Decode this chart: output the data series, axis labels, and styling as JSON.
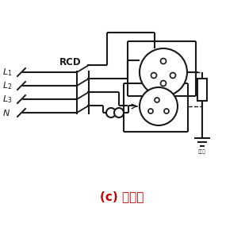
{
  "title": "(c) 四极式",
  "title_color": "#cc0000",
  "bg_color": "#ffffff",
  "line_color": "#1a1a1a",
  "fig_width": 3.09,
  "fig_height": 2.86,
  "dpi": 100
}
